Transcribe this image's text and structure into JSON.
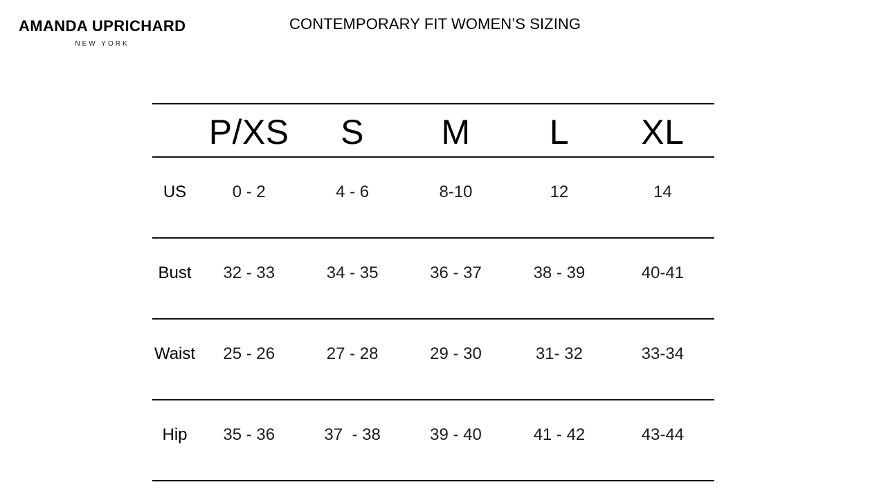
{
  "brand": {
    "name": "AMANDA UPRICHARD",
    "city": "NEW YORK"
  },
  "header": {
    "title": "CONTEMPORARY FIT WOMEN’S SIZING"
  },
  "chart_data": {
    "type": "table",
    "title": "CONTEMPORARY FIT WOMEN’S SIZING",
    "columns": [
      "P/XS",
      "S",
      "M",
      "L",
      "XL"
    ],
    "row_labels": [
      "US",
      "Bust",
      "Waist",
      "Hip"
    ],
    "rows": [
      [
        "0 - 2",
        "4 - 6",
        "8-10",
        "12",
        "14"
      ],
      [
        "32 - 33",
        "34 - 35",
        "36 - 37",
        "38 - 39",
        "40-41"
      ],
      [
        "25 - 26",
        "27 - 28",
        "29 - 30",
        "31- 32",
        "33-34"
      ],
      [
        "35 - 36",
        "37  - 38",
        "39 - 40",
        "41 - 42",
        "43-44"
      ]
    ],
    "units": "inches (implied, not shown)",
    "layout": {
      "grid": "horizontal rules only, no vertical rules",
      "rule_color": "#111111"
    }
  },
  "colors": {
    "background": "#ffffff",
    "text": "#000000",
    "data_text": "#1d1d1d",
    "rule": "#111111"
  }
}
